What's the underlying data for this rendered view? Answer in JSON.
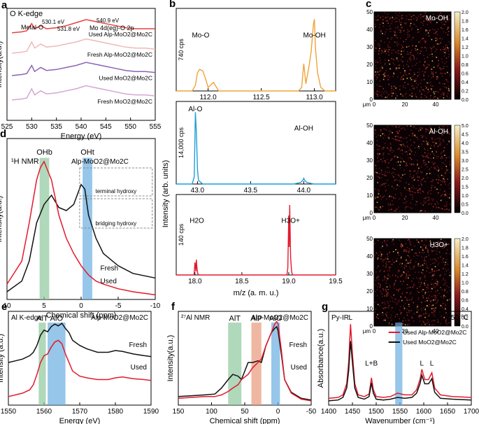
{
  "figure_title": "",
  "chart_data": [
    {
      "id": "a",
      "panel_letter": "a",
      "type": "line",
      "title": "O K-edge",
      "xlabel": "Energy (eV)",
      "ylabel": "Intensity(a.u.)",
      "xlim": [
        525,
        555
      ],
      "xticks": [
        525,
        530,
        535,
        540,
        545,
        550,
        555
      ],
      "annotations": [
        "530.1 eV",
        "Metal-O",
        "531.8 eV",
        "O",
        "540.9 eV",
        "Mo 4d(eg)-O 2p"
      ],
      "series": [
        {
          "name": "Used Al<sub>p</sub>-MoO<sub>2</sub>@Mo<sub>2</sub>C",
          "label": "Used Alp-MoO2@Mo2C",
          "color": "#e8403f",
          "x": [
            526,
            528,
            529,
            530,
            530.6,
            531.8,
            533,
            535,
            537,
            539,
            541,
            543,
            545,
            547,
            549,
            551,
            553,
            555
          ],
          "y": [
            0.86,
            0.87,
            0.88,
            0.95,
            0.9,
            0.93,
            0.9,
            0.91,
            0.93,
            0.96,
            0.99,
            0.97,
            0.95,
            0.93,
            0.91,
            0.9,
            0.9,
            0.9
          ]
        },
        {
          "name": "Fresh Al<sub>p</sub>-MoO<sub>2</sub>@Mo<sub>2</sub>C",
          "label": "Fresh Alp-MoO2@Mo2C",
          "color": "#f2b8b8",
          "x": [
            526,
            528,
            529,
            530,
            530.6,
            531.8,
            533,
            535,
            537,
            539,
            541,
            543,
            545,
            547,
            549,
            551,
            553,
            555
          ],
          "y": [
            0.66,
            0.67,
            0.68,
            0.77,
            0.71,
            0.75,
            0.72,
            0.73,
            0.75,
            0.77,
            0.8,
            0.78,
            0.76,
            0.74,
            0.72,
            0.71,
            0.71,
            0.7
          ]
        },
        {
          "name": "Used MoO<sub>2</sub>@Mo<sub>2</sub>C",
          "label": "Used MoO2@Mo2C",
          "color": "#8a64b4",
          "x": [
            526,
            528,
            529,
            530,
            530.6,
            531.8,
            533,
            535,
            537,
            539,
            541,
            543,
            545,
            547,
            549,
            551,
            553,
            555
          ],
          "y": [
            0.44,
            0.45,
            0.46,
            0.54,
            0.48,
            0.52,
            0.49,
            0.5,
            0.52,
            0.54,
            0.57,
            0.55,
            0.53,
            0.51,
            0.49,
            0.48,
            0.48,
            0.47
          ]
        },
        {
          "name": "Fresh MoO<sub>2</sub>@Mo<sub>2</sub>C",
          "label": "Fresh MoO2@Mo2C",
          "color": "#d3a7d3",
          "x": [
            526,
            528,
            529,
            530,
            530.6,
            531.8,
            533,
            535,
            537,
            539,
            541,
            543,
            545,
            547,
            549,
            551,
            553,
            555
          ],
          "y": [
            0.2,
            0.21,
            0.22,
            0.31,
            0.25,
            0.29,
            0.26,
            0.27,
            0.29,
            0.31,
            0.34,
            0.32,
            0.3,
            0.28,
            0.26,
            0.25,
            0.25,
            0.24
          ]
        }
      ]
    },
    {
      "id": "b",
      "panel_letter": "b",
      "type": "line",
      "title": "",
      "xlabel": "m/z (a. m. u.)",
      "ylabel": "Intensity (arb. units)",
      "subplots": [
        {
          "xlim": [
            111.7,
            113.2
          ],
          "xticks": [
            112.0,
            112.5,
            113.0
          ],
          "scale_label": "740 cps",
          "color": "#f0a33a",
          "peak_labels": [
            {
              "text": "Mo-O",
              "x": 111.93
            },
            {
              "text": "Mo-OH",
              "x": 113.0
            }
          ],
          "x": [
            111.7,
            111.85,
            111.88,
            111.9,
            111.92,
            111.95,
            111.98,
            112.0,
            112.05,
            112.1,
            112.3,
            112.5,
            112.7,
            112.85,
            112.88,
            112.9,
            112.92,
            112.95,
            112.97,
            112.99,
            113.0,
            113.01,
            113.03,
            113.06,
            113.1,
            113.2
          ],
          "y": [
            0,
            0,
            0.08,
            0.25,
            0.3,
            0.28,
            0.15,
            0.05,
            0.12,
            0,
            0,
            0,
            0,
            0,
            0.05,
            0.38,
            0.1,
            0.35,
            0.55,
            0.92,
            1.0,
            0.6,
            0.25,
            0.05,
            0,
            0
          ]
        },
        {
          "xlim": [
            42.8,
            44.3
          ],
          "xticks": [
            43.0,
            43.5,
            44.0
          ],
          "scale_label": "14,000 cps",
          "color": "#1f9ed8",
          "peak_labels": [
            {
              "text": "Al-O",
              "x": 42.98
            },
            {
              "text": "Al-OH",
              "x": 44.0
            }
          ],
          "x": [
            42.8,
            42.95,
            42.97,
            42.98,
            42.99,
            43.0,
            43.01,
            43.05,
            43.3,
            43.6,
            43.9,
            43.97,
            43.99,
            44.0,
            44.01,
            44.03,
            44.1,
            44.3
          ],
          "y": [
            0,
            0,
            0.1,
            1.0,
            0.7,
            0.2,
            0.05,
            0,
            0,
            0,
            0,
            0.02,
            0.05,
            0.08,
            0.05,
            0.02,
            0,
            0
          ]
        },
        {
          "xlim": [
            17.8,
            19.5
          ],
          "xticks": [
            18.0,
            18.5,
            19.0,
            19.5
          ],
          "scale_label": "140 cps",
          "color": "#e31a2d",
          "peak_labels": [
            {
              "text": "H2O",
              "x": 18.02
            },
            {
              "text": "H3O+",
              "x": 19.02
            }
          ],
          "x": [
            17.8,
            17.99,
            18.0,
            18.01,
            18.015,
            18.02,
            18.03,
            18.04,
            18.3,
            18.7,
            18.98,
            18.99,
            19.0,
            19.005,
            19.01,
            19.02,
            19.03,
            19.04,
            19.2,
            19.5
          ],
          "y": [
            0,
            0,
            0.18,
            0.05,
            0.22,
            0.12,
            0.02,
            0,
            0,
            0,
            0,
            0.1,
            0.85,
            0.4,
            1.0,
            0.25,
            0.05,
            0,
            0,
            0
          ]
        }
      ]
    },
    {
      "id": "c",
      "panel_letter": "c",
      "type": "heatmap",
      "xlabel": "μm",
      "ylabel": "μm",
      "maps": [
        {
          "label": "Mo-OH",
          "colorbar": [
            0.0,
            0.2,
            0.4,
            0.6,
            0.8,
            1.0,
            1.2,
            1.4,
            1.6,
            1.8,
            2.0
          ]
        },
        {
          "label": "Al-OH",
          "colorbar": [
            0.0,
            0.5,
            1.0,
            1.5,
            2.0,
            2.5,
            3.0,
            3.5,
            4.0,
            4.5,
            5.0
          ]
        },
        {
          "label": "H3O+",
          "colorbar": [
            0.0,
            0.2,
            0.4,
            0.6,
            0.8,
            1.0,
            1.2,
            1.4,
            1.6,
            1.8,
            2.0
          ]
        }
      ],
      "xticks": [
        0,
        20,
        40
      ],
      "yticks": [
        0,
        10,
        20,
        30,
        40,
        50
      ]
    },
    {
      "id": "d",
      "panel_letter": "d",
      "type": "line",
      "title": "¹H NMR",
      "subtitle": "Alp-MoO2@Mo2C",
      "xlabel": "Chemical shift (ppm)",
      "ylabel": "Intensity(a.u.)",
      "xlim": [
        10,
        -10
      ],
      "xticks": [
        10,
        5,
        0,
        -5,
        -10
      ],
      "bands": [
        {
          "label": "OHb",
          "from": 5.6,
          "to": 4.3,
          "color": "#8fc79c"
        },
        {
          "label": "OHt",
          "from": -0.2,
          "to": -1.5,
          "color": "#6aaee0"
        }
      ],
      "legend_box": [
        "terminal hydroxy",
        "bridging hydroxy"
      ],
      "series": [
        {
          "name": "Fresh",
          "color": "#111111",
          "x": [
            10,
            8,
            7,
            6,
            5,
            4,
            3,
            2,
            1,
            0,
            -0.5,
            -1,
            -2,
            -3,
            -5,
            -7,
            -10
          ],
          "y": [
            0.05,
            0.12,
            0.25,
            0.5,
            0.62,
            0.68,
            0.6,
            0.58,
            0.62,
            0.75,
            0.72,
            0.55,
            0.4,
            0.3,
            0.22,
            0.17,
            0.14
          ]
        },
        {
          "name": "Used",
          "color": "#e31a2d",
          "x": [
            10,
            8,
            7,
            6,
            5.5,
            5,
            4,
            3,
            2,
            1,
            0,
            -1,
            -2,
            -3,
            -5,
            -7,
            -10
          ],
          "y": [
            0.1,
            0.25,
            0.5,
            0.78,
            0.86,
            0.9,
            0.78,
            0.55,
            0.4,
            0.3,
            0.22,
            0.16,
            0.12,
            0.1,
            0.07,
            0.05,
            0.03
          ]
        }
      ]
    },
    {
      "id": "e",
      "panel_letter": "e",
      "type": "line",
      "title": "Al K-edge",
      "subtitle": "Alp-MoO2@Mo2C",
      "xlabel": "Energy (eV)",
      "ylabel": "Intensity (a.u.)",
      "xlim": [
        1550,
        1590
      ],
      "xticks": [
        1550,
        1560,
        1570,
        1580,
        1590
      ],
      "bands": [
        {
          "label": "AlT",
          "from": 1558.5,
          "to": 1560.5,
          "color": "#8fc79c"
        },
        {
          "label": "AlO",
          "from": 1561,
          "to": 1566,
          "color": "#6aaee0"
        }
      ],
      "series": [
        {
          "name": "Fresh",
          "color": "#111111",
          "x": [
            1550,
            1552,
            1554,
            1556,
            1557,
            1558,
            1559,
            1560,
            1561,
            1562,
            1563,
            1564,
            1565,
            1566,
            1567,
            1568,
            1570,
            1572,
            1575,
            1578,
            1580,
            1582,
            1585,
            1588,
            1590
          ],
          "y": [
            0.5,
            0.52,
            0.54,
            0.58,
            0.62,
            0.7,
            0.82,
            0.88,
            0.86,
            0.92,
            0.95,
            0.93,
            0.96,
            0.9,
            0.85,
            0.76,
            0.7,
            0.66,
            0.62,
            0.62,
            0.64,
            0.63,
            0.6,
            0.58,
            0.57
          ]
        },
        {
          "name": "Used",
          "color": "#e31a2d",
          "x": [
            1550,
            1552,
            1554,
            1556,
            1557,
            1558,
            1559,
            1560,
            1561,
            1562,
            1563,
            1564,
            1565,
            1566,
            1567,
            1568,
            1570,
            1572,
            1575,
            1578,
            1580,
            1582,
            1585,
            1588,
            1590
          ],
          "y": [
            0.1,
            0.12,
            0.14,
            0.18,
            0.24,
            0.36,
            0.5,
            0.58,
            0.6,
            0.68,
            0.74,
            0.76,
            0.72,
            0.6,
            0.5,
            0.4,
            0.34,
            0.32,
            0.3,
            0.3,
            0.32,
            0.33,
            0.31,
            0.3,
            0.29
          ]
        }
      ]
    },
    {
      "id": "f",
      "panel_letter": "f",
      "type": "line",
      "title": "²⁷Al NMR",
      "subtitle": "Alp-MoO2@Mo2C",
      "xlabel": "Chemical shift (ppm)",
      "ylabel": "Intensity(a.u.)",
      "xlim": [
        150,
        -50
      ],
      "xticks": [
        150,
        100,
        50,
        0,
        -50
      ],
      "bands": [
        {
          "label": "AlT",
          "from": 75,
          "to": 55,
          "color": "#8fc79c"
        },
        {
          "label": "AlP",
          "from": 40,
          "to": 25,
          "color": "#e8987a"
        },
        {
          "label": "AlO",
          "from": 10,
          "to": -3,
          "color": "#6aaee0"
        }
      ],
      "series": [
        {
          "name": "Fresh",
          "color": "#111111",
          "x": [
            150,
            130,
            110,
            95,
            85,
            75,
            68,
            60,
            55,
            45,
            38,
            30,
            25,
            18,
            10,
            5,
            2,
            0,
            -5,
            -10,
            -20,
            -35,
            -50
          ],
          "y": [
            0.1,
            0.11,
            0.12,
            0.13,
            0.2,
            0.3,
            0.36,
            0.34,
            0.3,
            0.5,
            0.5,
            0.52,
            0.5,
            0.7,
            0.85,
            0.9,
            0.92,
            0.88,
            0.6,
            0.3,
            0.15,
            0.08,
            0.06
          ]
        },
        {
          "name": "Used",
          "color": "#e31a2d",
          "x": [
            150,
            130,
            110,
            95,
            85,
            75,
            68,
            60,
            55,
            45,
            38,
            30,
            25,
            18,
            10,
            5,
            2,
            0,
            -5,
            -10,
            -20,
            -35,
            -50
          ],
          "y": [
            0.08,
            0.09,
            0.1,
            0.1,
            0.12,
            0.16,
            0.2,
            0.24,
            0.3,
            0.36,
            0.44,
            0.5,
            0.54,
            0.7,
            0.85,
            0.95,
            0.98,
            0.96,
            0.65,
            0.3,
            0.14,
            0.07,
            0.05
          ]
        }
      ]
    },
    {
      "id": "g",
      "panel_letter": "g",
      "type": "line",
      "title": "Py-IR",
      "subtitle": "50 ℃",
      "xlabel": "Wavenumber (cm⁻¹)",
      "ylabel": "Absorbance(a.u.)",
      "xlim": [
        1400,
        1700
      ],
      "xticks": [
        1400,
        1450,
        1500,
        1550,
        1600,
        1650,
        1700
      ],
      "bands": [
        {
          "label": "B",
          "from": 1540,
          "to": 1555,
          "color": "#6aaee0"
        }
      ],
      "peak_labels": [
        {
          "text": "L",
          "x": 1446
        },
        {
          "text": "L+B",
          "x": 1490
        },
        {
          "text": "L",
          "x": 1596
        },
        {
          "text": "L",
          "x": 1617
        }
      ],
      "series": [
        {
          "name": "Used Al<sub>p</sub>-MoO<sub>2</sub>@Mo<sub>2</sub>C",
          "label": "Used Alp-MoO2@Mo2C",
          "color": "#e31a2d",
          "x": [
            1400,
            1420,
            1430,
            1438,
            1442,
            1446,
            1450,
            1455,
            1462,
            1475,
            1485,
            1490,
            1494,
            1500,
            1515,
            1530,
            1545,
            1560,
            1575,
            1585,
            1592,
            1596,
            1602,
            1610,
            1617,
            1623,
            1635,
            1660,
            1700
          ],
          "y": [
            0.08,
            0.09,
            0.12,
            0.25,
            0.5,
            0.95,
            0.6,
            0.25,
            0.12,
            0.1,
            0.13,
            0.32,
            0.18,
            0.1,
            0.09,
            0.1,
            0.14,
            0.12,
            0.12,
            0.18,
            0.3,
            0.42,
            0.3,
            0.3,
            0.38,
            0.2,
            0.12,
            0.1,
            0.09
          ]
        },
        {
          "name": "Used MoO<sub>2</sub>@Mo<sub>2</sub>C",
          "label": "Used MoO2@Mo2C",
          "color": "#111111",
          "x": [
            1400,
            1420,
            1430,
            1438,
            1442,
            1446,
            1450,
            1455,
            1462,
            1475,
            1485,
            1490,
            1494,
            1500,
            1515,
            1530,
            1545,
            1560,
            1575,
            1585,
            1592,
            1596,
            1602,
            1610,
            1617,
            1623,
            1635,
            1660,
            1700
          ],
          "y": [
            0.05,
            0.06,
            0.09,
            0.2,
            0.4,
            0.75,
            0.5,
            0.2,
            0.09,
            0.07,
            0.1,
            0.26,
            0.14,
            0.07,
            0.06,
            0.07,
            0.09,
            0.08,
            0.09,
            0.14,
            0.25,
            0.35,
            0.25,
            0.25,
            0.31,
            0.15,
            0.08,
            0.07,
            0.06
          ]
        }
      ]
    }
  ]
}
